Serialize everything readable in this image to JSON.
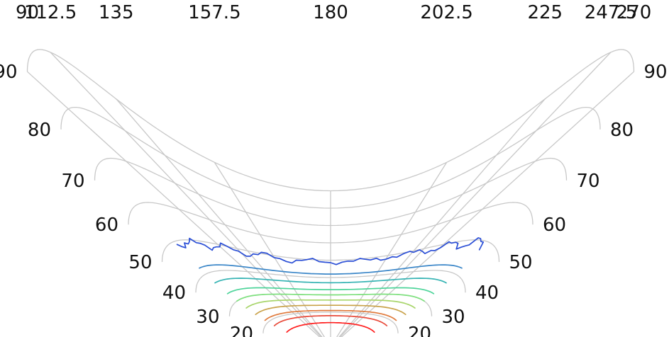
{
  "chart_data": {
    "type": "polar-contour",
    "angle_ticks": [
      {
        "angle": 270,
        "label": "270"
      },
      {
        "angle": 247.5,
        "label": "247.5"
      },
      {
        "angle": 225,
        "label": "225"
      },
      {
        "angle": 202.5,
        "label": "202.5"
      },
      {
        "angle": 180,
        "label": "180"
      },
      {
        "angle": 157.5,
        "label": "157.5"
      },
      {
        "angle": 135,
        "label": "135"
      },
      {
        "angle": 112.5,
        "label": "112.5"
      },
      {
        "angle": 90,
        "label": "90"
      }
    ],
    "radial_ticks": [
      20,
      30,
      40,
      50,
      60,
      70,
      80,
      90
    ],
    "grid": true,
    "contours": [
      {
        "radius": 49,
        "color": "#2b4fd6",
        "wobble": true
      },
      {
        "radius": 42,
        "color": "#3a86c8"
      },
      {
        "radius": 37,
        "color": "#35b3b3"
      },
      {
        "radius": 33,
        "color": "#4ed49a"
      },
      {
        "radius": 30,
        "color": "#7ee07e"
      },
      {
        "radius": 27,
        "color": "#a8d56b"
      },
      {
        "radius": 24,
        "color": "#c9a24a"
      },
      {
        "radius": 21,
        "color": "#e07a3c"
      },
      {
        "radius": 18,
        "color": "#e84a3a"
      },
      {
        "radius": 14,
        "color": "#ff1e1e"
      }
    ]
  }
}
